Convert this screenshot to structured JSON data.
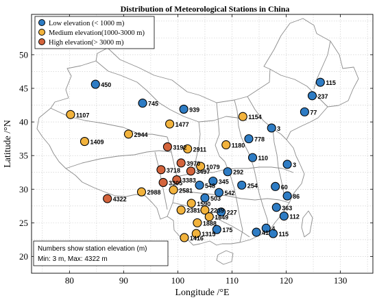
{
  "chart_data": {
    "type": "scatter",
    "title": "Distribution of Meteorological Stations in China",
    "xlabel": "Longitude /°E",
    "ylabel": "Latitude /°N",
    "xlim": [
      73,
      136
    ],
    "ylim": [
      17.5,
      56
    ],
    "xticks": [
      80,
      90,
      100,
      110,
      120,
      130
    ],
    "yticks": [
      20,
      25,
      30,
      35,
      40,
      45,
      50
    ],
    "grid": true,
    "legend": {
      "position": "top-left",
      "entries": [
        {
          "key": "low",
          "label": "Low elevation (< 1000 m)",
          "color": "#2E7CC4"
        },
        {
          "key": "medium",
          "label": "Medium elevation(1000-3000 m)",
          "color": "#F2B33D"
        },
        {
          "key": "high",
          "label": "High elevation(> 3000 m)",
          "color": "#D4643C"
        }
      ]
    },
    "note": {
      "line1": "Numbers show station elevation (m)",
      "line2": "Min: 3 m, Max: 4322 m"
    },
    "stations": [
      {
        "lon": 84.8,
        "lat": 45.6,
        "elev": "450",
        "cat": "low"
      },
      {
        "lon": 93.5,
        "lat": 42.8,
        "elev": "745",
        "cat": "low"
      },
      {
        "lon": 101.1,
        "lat": 41.9,
        "elev": "939",
        "cat": "low"
      },
      {
        "lon": 80.2,
        "lat": 41.1,
        "elev": "1107",
        "cat": "medium"
      },
      {
        "lon": 98.5,
        "lat": 39.7,
        "elev": "1477",
        "cat": "medium"
      },
      {
        "lon": 90.9,
        "lat": 38.2,
        "elev": "2944",
        "cat": "medium"
      },
      {
        "lon": 82.8,
        "lat": 37.1,
        "elev": "1409",
        "cat": "medium"
      },
      {
        "lon": 112.0,
        "lat": 40.8,
        "elev": "1154",
        "cat": "medium"
      },
      {
        "lon": 126.3,
        "lat": 45.9,
        "elev": "115",
        "cat": "low"
      },
      {
        "lon": 124.8,
        "lat": 43.9,
        "elev": "237",
        "cat": "low"
      },
      {
        "lon": 123.4,
        "lat": 41.5,
        "elev": "77",
        "cat": "low"
      },
      {
        "lon": 117.3,
        "lat": 39.1,
        "elev": "3",
        "cat": "low"
      },
      {
        "lon": 113.1,
        "lat": 37.5,
        "elev": "778",
        "cat": "low"
      },
      {
        "lon": 108.9,
        "lat": 36.6,
        "elev": "1180",
        "cat": "medium"
      },
      {
        "lon": 98.1,
        "lat": 36.3,
        "elev": "3192",
        "cat": "high"
      },
      {
        "lon": 101.8,
        "lat": 36.0,
        "elev": "2911",
        "cat": "medium"
      },
      {
        "lon": 100.6,
        "lat": 33.9,
        "elev": "3970",
        "cat": "high"
      },
      {
        "lon": 104.2,
        "lat": 33.4,
        "elev": "1079",
        "cat": "medium"
      },
      {
        "lon": 113.8,
        "lat": 34.7,
        "elev": "110",
        "cat": "low"
      },
      {
        "lon": 120.2,
        "lat": 33.7,
        "elev": "3",
        "cat": "low"
      },
      {
        "lon": 96.9,
        "lat": 32.9,
        "elev": "3718",
        "cat": "high"
      },
      {
        "lon": 102.4,
        "lat": 32.7,
        "elev": "3497",
        "cat": "high"
      },
      {
        "lon": 109.2,
        "lat": 32.6,
        "elev": "292",
        "cat": "low"
      },
      {
        "lon": 99.8,
        "lat": 31.4,
        "elev": "3383",
        "cat": "high"
      },
      {
        "lon": 106.5,
        "lat": 31.2,
        "elev": "345",
        "cat": "low"
      },
      {
        "lon": 97.3,
        "lat": 31.0,
        "elev": "3305",
        "cat": "high"
      },
      {
        "lon": 104.0,
        "lat": 30.6,
        "elev": "548",
        "cat": "low"
      },
      {
        "lon": 111.8,
        "lat": 30.6,
        "elev": "254",
        "cat": "low"
      },
      {
        "lon": 118.0,
        "lat": 30.4,
        "elev": "60",
        "cat": "low"
      },
      {
        "lon": 99.2,
        "lat": 29.9,
        "elev": "2581",
        "cat": "medium"
      },
      {
        "lon": 93.3,
        "lat": 29.6,
        "elev": "2988",
        "cat": "medium"
      },
      {
        "lon": 107.6,
        "lat": 29.5,
        "elev": "542",
        "cat": "low"
      },
      {
        "lon": 120.2,
        "lat": 29.0,
        "elev": "86",
        "cat": "low"
      },
      {
        "lon": 105.0,
        "lat": 28.7,
        "elev": "503",
        "cat": "low"
      },
      {
        "lon": 87.0,
        "lat": 28.6,
        "elev": "4322",
        "cat": "high"
      },
      {
        "lon": 102.5,
        "lat": 27.9,
        "elev": "1590",
        "cat": "medium"
      },
      {
        "lon": 118.2,
        "lat": 27.3,
        "elev": "363",
        "cat": "low"
      },
      {
        "lon": 100.6,
        "lat": 26.9,
        "elev": "2381",
        "cat": "medium"
      },
      {
        "lon": 105.0,
        "lat": 26.9,
        "elev": "2239",
        "cat": "medium"
      },
      {
        "lon": 108.0,
        "lat": 26.6,
        "elev": "227",
        "cat": "low"
      },
      {
        "lon": 119.6,
        "lat": 26.0,
        "elev": "112",
        "cat": "low"
      },
      {
        "lon": 105.8,
        "lat": 25.9,
        "elev": "1649",
        "cat": "medium"
      },
      {
        "lon": 103.6,
        "lat": 25.0,
        "elev": "1888",
        "cat": "medium"
      },
      {
        "lon": 107.2,
        "lat": 24.0,
        "elev": "175",
        "cat": "low"
      },
      {
        "lon": 116.3,
        "lat": 24.2,
        "elev": "4",
        "cat": "low"
      },
      {
        "lon": 114.5,
        "lat": 23.6,
        "elev": "41",
        "cat": "low"
      },
      {
        "lon": 117.6,
        "lat": 23.4,
        "elev": "115",
        "cat": "low"
      },
      {
        "lon": 103.4,
        "lat": 23.4,
        "elev": "1315",
        "cat": "medium"
      },
      {
        "lon": 101.2,
        "lat": 22.8,
        "elev": "1416",
        "cat": "medium"
      }
    ]
  }
}
